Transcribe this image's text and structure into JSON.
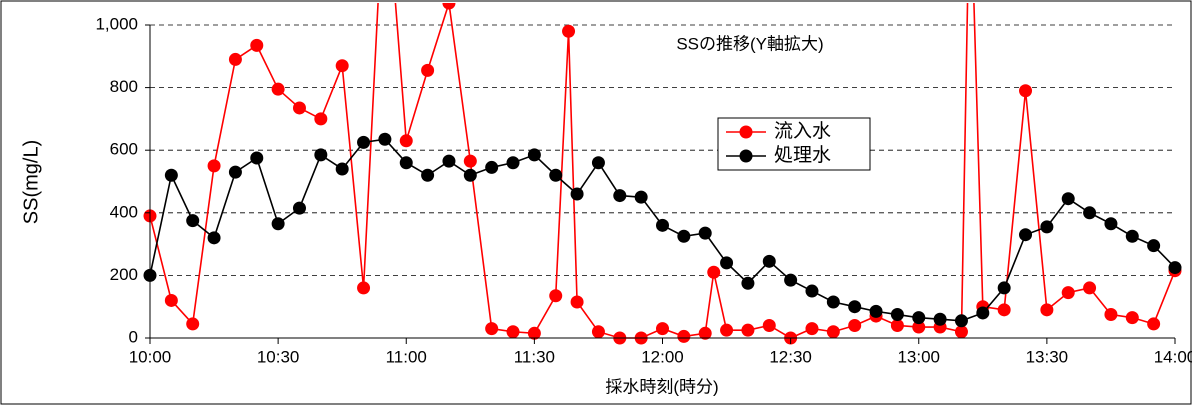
{
  "chart_data": {
    "type": "line",
    "title": "SSの推移(Y軸拡大)",
    "x_label": "採水時刻(時分)",
    "y_label": "SS(mg/L)",
    "xlim": [
      "10:00",
      "14:00"
    ],
    "xticks": [
      "10:00",
      "10:30",
      "11:00",
      "11:30",
      "12:00",
      "12:30",
      "13:00",
      "13:30",
      "14:00"
    ],
    "ylim": [
      0,
      1000
    ],
    "yticks": [
      0,
      200,
      400,
      600,
      800,
      {
        "value": 1000,
        "label": "1,000"
      }
    ],
    "grid": true,
    "legend": "upper right",
    "series": [
      {
        "name": "流入水",
        "color": "#ff0000",
        "x": [
          "10:00",
          "10:05",
          "10:10",
          "10:15",
          "10:20",
          "10:25",
          "10:30",
          "10:35",
          "10:40",
          "10:45",
          "10:50",
          "10:55",
          "11:00",
          "11:05",
          "11:10",
          "11:15",
          "11:20",
          "11:25",
          "11:30",
          "11:35",
          "11:38",
          "11:40",
          "11:45",
          "11:50",
          "11:55",
          "12:00",
          "12:05",
          "12:10",
          "12:12",
          "12:15",
          "12:20",
          "12:25",
          "12:30",
          "12:35",
          "12:40",
          "12:45",
          "12:50",
          "12:55",
          "13:00",
          "13:05",
          "13:10",
          "13:12",
          "13:15",
          "13:20",
          "13:25",
          "13:30",
          "13:35",
          "13:40",
          "13:45",
          "13:50",
          "13:55",
          "14:00"
        ],
        "values": [
          390,
          120,
          45,
          550,
          890,
          935,
          795,
          735,
          700,
          870,
          160,
          1500,
          630,
          855,
          1070,
          565,
          30,
          20,
          15,
          135,
          980,
          115,
          20,
          0,
          0,
          30,
          5,
          15,
          210,
          25,
          25,
          40,
          0,
          30,
          20,
          40,
          70,
          40,
          35,
          35,
          20,
          1500,
          100,
          90,
          790,
          90,
          145,
          160,
          75,
          65,
          45,
          215
        ]
      },
      {
        "name": "処理水",
        "color": "#000000",
        "x": [
          "10:00",
          "10:05",
          "10:10",
          "10:15",
          "10:20",
          "10:25",
          "10:30",
          "10:35",
          "10:40",
          "10:45",
          "10:50",
          "10:55",
          "11:00",
          "11:05",
          "11:10",
          "11:15",
          "11:20",
          "11:25",
          "11:30",
          "11:35",
          "11:40",
          "11:45",
          "11:50",
          "11:55",
          "12:00",
          "12:05",
          "12:10",
          "12:15",
          "12:20",
          "12:25",
          "12:30",
          "12:35",
          "12:40",
          "12:45",
          "12:50",
          "12:55",
          "13:00",
          "13:05",
          "13:10",
          "13:15",
          "13:20",
          "13:25",
          "13:30",
          "13:35",
          "13:40",
          "13:45",
          "13:50",
          "13:55",
          "14:00"
        ],
        "values": [
          200,
          520,
          375,
          320,
          530,
          575,
          365,
          415,
          585,
          540,
          625,
          635,
          560,
          520,
          565,
          520,
          545,
          560,
          585,
          520,
          460,
          560,
          455,
          450,
          360,
          325,
          335,
          240,
          175,
          245,
          185,
          150,
          115,
          100,
          85,
          75,
          65,
          60,
          55,
          80,
          160,
          330,
          355,
          445,
          400,
          365,
          325,
          295,
          225
        ]
      }
    ]
  }
}
